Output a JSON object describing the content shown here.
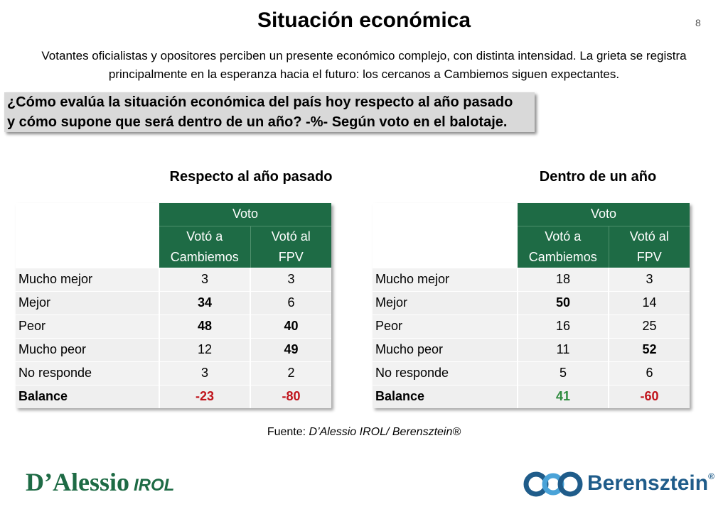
{
  "title": "Situación económica",
  "page_number": "8",
  "subtitle": "Votantes oficialistas y opositores perciben un presente económico complejo, con distinta intensidad. La grieta se registra principalmente en la esperanza hacia el futuro: los cercanos a Cambiemos siguen expectantes.",
  "question_line1": "¿Cómo evalúa la situación económica del país hoy respecto al año pasado",
  "question_line2": "y cómo supone que será dentro de un año? -%- Según voto en el balotaje.",
  "tables": [
    {
      "heading": "Respecto al año pasado",
      "group_header": "Voto",
      "col1_line1": "Votó a",
      "col1_line2": "Cambiemos",
      "col2_line1": "Votó al",
      "col2_line2": "FPV",
      "rows": [
        {
          "label": "Mucho mejor",
          "v1": "3",
          "v2": "3"
        },
        {
          "label": "Mejor",
          "v1": "34",
          "v2": "6"
        },
        {
          "label": "Peor",
          "v1": "48",
          "v2": "40"
        },
        {
          "label": "Mucho peor",
          "v1": "12",
          "v2": "49"
        },
        {
          "label": "No responde",
          "v1": "3",
          "v2": "2"
        },
        {
          "label": "Balance",
          "v1": "-23",
          "v2": "-80"
        }
      ]
    },
    {
      "heading": "Dentro de un año",
      "group_header": "Voto",
      "col1_line1": "Votó a",
      "col1_line2": "Cambiemos",
      "col2_line1": "Votó al",
      "col2_line2": "FPV",
      "rows": [
        {
          "label": "Mucho mejor",
          "v1": "18",
          "v2": "3"
        },
        {
          "label": "Mejor",
          "v1": "50",
          "v2": "14"
        },
        {
          "label": "Peor",
          "v1": "16",
          "v2": "25"
        },
        {
          "label": "Mucho peor",
          "v1": "11",
          "v2": "52"
        },
        {
          "label": "No responde",
          "v1": "5",
          "v2": "6"
        },
        {
          "label": "Balance",
          "v1": "41",
          "v2": "-60"
        }
      ]
    }
  ],
  "source_label": "Fuente: ",
  "source_text": "D’Alessio IROL/ Berensztein®",
  "logo_left": "D’Alessio",
  "logo_left_suffix": "IROL",
  "logo_right": "Berensztein",
  "logo_right_reg": "®",
  "colors": {
    "header_green": "#1e6b45",
    "negative_red": "#c0141c",
    "positive_green": "#2e8b3e",
    "brand_blue": "#1f5c8a"
  }
}
